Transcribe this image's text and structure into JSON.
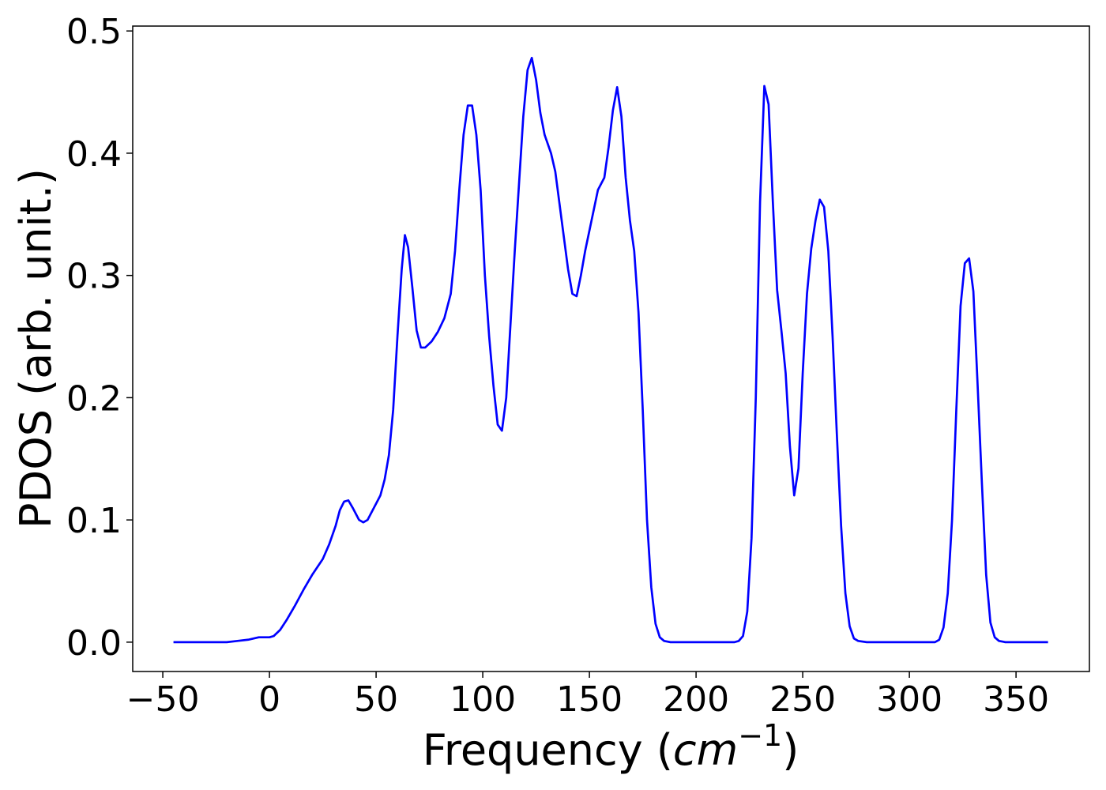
{
  "chart_data": {
    "type": "line",
    "xlabel_parts": [
      "Frequency (",
      "cm",
      "−1",
      ")"
    ],
    "ylabel": "PDOS (arb. unit.)",
    "xlim": [
      -64.1,
      384.4
    ],
    "ylim": [
      -0.024,
      0.504
    ],
    "xticks": [
      {
        "value": -50,
        "label": "−50"
      },
      0,
      50,
      100,
      150,
      200,
      250,
      300,
      350
    ],
    "yticks": [
      {
        "value": 0,
        "label": "0.0"
      },
      0.1,
      0.2,
      0.3,
      0.4,
      0.5
    ],
    "grid": false,
    "x": [
      -45,
      -20,
      -15,
      -10,
      -5,
      0,
      2,
      5,
      8,
      12,
      16,
      20,
      25,
      28,
      31,
      33,
      35,
      37,
      39,
      42,
      44,
      46,
      49,
      52,
      54,
      56,
      58,
      60,
      62,
      63.5,
      65,
      67,
      69,
      71,
      73,
      76,
      79,
      82,
      85,
      87,
      89,
      91,
      93,
      95,
      97,
      99,
      101,
      103,
      105,
      107,
      109,
      111,
      113,
      115,
      117,
      119,
      121,
      123,
      125,
      127,
      129,
      132,
      134,
      137,
      140,
      142,
      144,
      146,
      148,
      151,
      154,
      157,
      159,
      161,
      163,
      165,
      167,
      169,
      171,
      173,
      175,
      177,
      179,
      181,
      183,
      185,
      188,
      218,
      220,
      222,
      224,
      226,
      228,
      230,
      232,
      234,
      236,
      238,
      240,
      242,
      244,
      246,
      248,
      250,
      252,
      254,
      256,
      258,
      260,
      262,
      264,
      266,
      268,
      270,
      272,
      274,
      276,
      280,
      312,
      314,
      316,
      318,
      320,
      322,
      324,
      326,
      328,
      330,
      332,
      334,
      336,
      338,
      340,
      342,
      345,
      365
    ],
    "series": [
      {
        "name": "PDOS",
        "color": "#0000ff",
        "values": [
          0,
          0,
          0.001,
          0.002,
          0.004,
          0.004,
          0.005,
          0.01,
          0.018,
          0.03,
          0.043,
          0.055,
          0.068,
          0.08,
          0.095,
          0.108,
          0.115,
          0.116,
          0.11,
          0.1,
          0.098,
          0.1,
          0.11,
          0.12,
          0.133,
          0.153,
          0.19,
          0.25,
          0.305,
          0.333,
          0.323,
          0.29,
          0.255,
          0.241,
          0.241,
          0.246,
          0.254,
          0.265,
          0.285,
          0.32,
          0.37,
          0.415,
          0.439,
          0.439,
          0.415,
          0.37,
          0.3,
          0.25,
          0.21,
          0.178,
          0.173,
          0.2,
          0.26,
          0.32,
          0.375,
          0.43,
          0.468,
          0.478,
          0.46,
          0.433,
          0.415,
          0.4,
          0.385,
          0.345,
          0.305,
          0.285,
          0.283,
          0.3,
          0.32,
          0.345,
          0.37,
          0.38,
          0.405,
          0.435,
          0.454,
          0.43,
          0.38,
          0.345,
          0.32,
          0.27,
          0.19,
          0.1,
          0.045,
          0.015,
          0.004,
          0.001,
          0,
          0,
          0.001,
          0.005,
          0.025,
          0.085,
          0.2,
          0.36,
          0.455,
          0.44,
          0.36,
          0.288,
          0.255,
          0.22,
          0.16,
          0.12,
          0.142,
          0.22,
          0.285,
          0.322,
          0.345,
          0.362,
          0.356,
          0.32,
          0.25,
          0.17,
          0.095,
          0.04,
          0.013,
          0.003,
          0.001,
          0,
          0,
          0.002,
          0.012,
          0.04,
          0.1,
          0.19,
          0.275,
          0.31,
          0.314,
          0.287,
          0.21,
          0.13,
          0.055,
          0.016,
          0.004,
          0.001,
          0,
          0
        ]
      }
    ]
  }
}
